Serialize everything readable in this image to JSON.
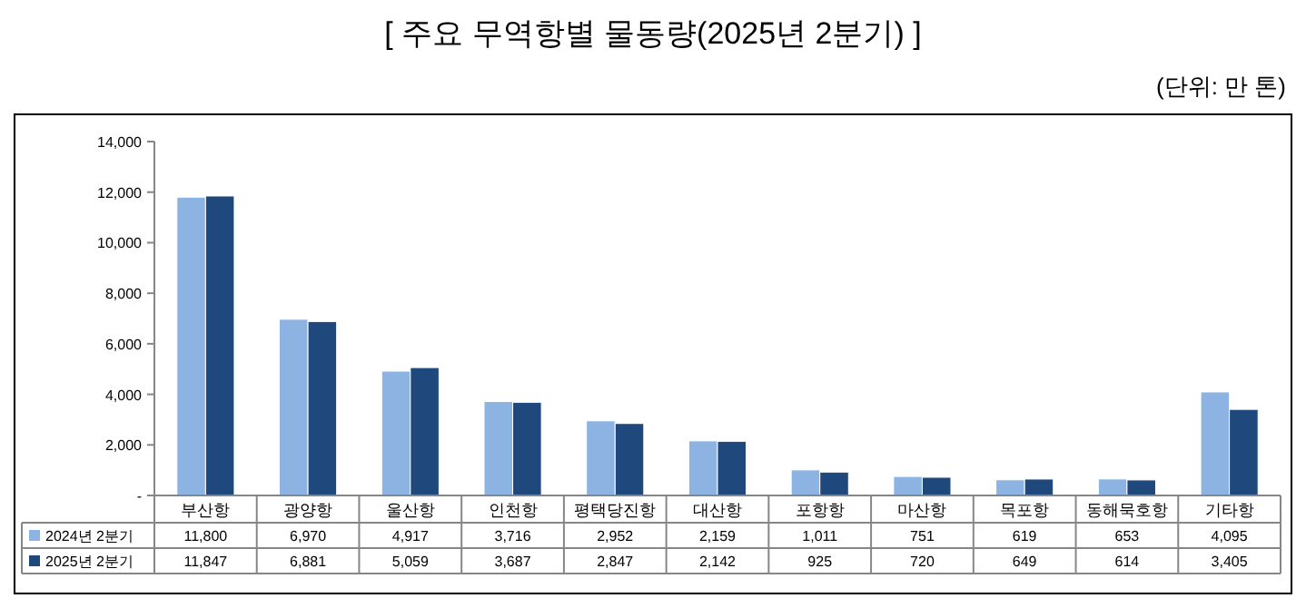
{
  "chart_data": {
    "type": "bar",
    "title": "[ 주요 무역항별 물동량(2025년 2분기) ]",
    "annotations": [
      "(단위: 만 톤)"
    ],
    "categories": [
      "부산항",
      "광양항",
      "울산항",
      "인천항",
      "평택당진항",
      "대산항",
      "포항항",
      "마산항",
      "목포항",
      "동해묵호항",
      "기타항"
    ],
    "series": [
      {
        "name": "2024년 2분기",
        "color": "#8db3e2",
        "values": [
          11800,
          6970,
          4917,
          3716,
          2952,
          2159,
          1011,
          751,
          619,
          653,
          4095
        ],
        "value_labels": [
          "11,800",
          "6,970",
          "4,917",
          "3,716",
          "2,952",
          "2,159",
          "1,011",
          "751",
          "619",
          "653",
          "4,095"
        ]
      },
      {
        "name": "2025년 2분기",
        "color": "#1f497d",
        "values": [
          11847,
          6881,
          5059,
          3687,
          2847,
          2142,
          925,
          720,
          649,
          614,
          3405
        ],
        "value_labels": [
          "11,847",
          "6,881",
          "5,059",
          "3,687",
          "2,847",
          "2,142",
          "925",
          "720",
          "649",
          "614",
          "3,405"
        ]
      }
    ],
    "ylim": [
      0,
      14000
    ],
    "yticks": [
      {
        "value": 0,
        "label": "-"
      },
      {
        "value": 2000,
        "label": "2,000"
      },
      {
        "value": 4000,
        "label": "4,000"
      },
      {
        "value": 6000,
        "label": "6,000"
      },
      {
        "value": 8000,
        "label": "8,000"
      },
      {
        "value": 10000,
        "label": "10,000"
      },
      {
        "value": 12000,
        "label": "12,000"
      },
      {
        "value": 14000,
        "label": "14,000"
      }
    ],
    "legend": "bottom left",
    "grid": false
  }
}
